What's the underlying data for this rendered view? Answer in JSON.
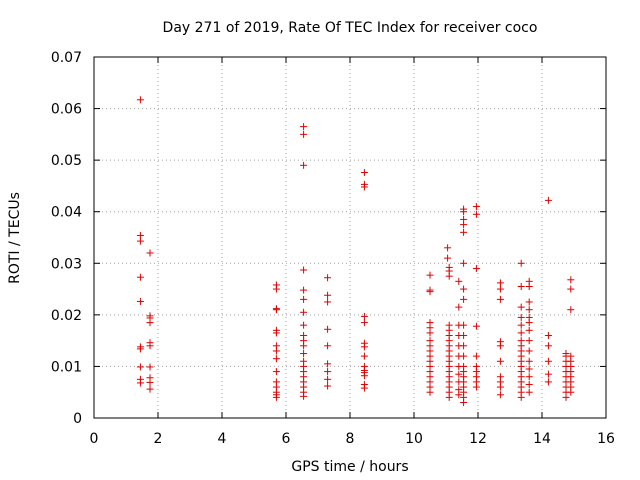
{
  "chart_data": {
    "type": "scatter",
    "title": "Day 271 of 2019, Rate Of TEC Index for receiver coco",
    "xlabel": "GPS time / hours",
    "ylabel": "ROTI / TECUs",
    "xlim": [
      0,
      16
    ],
    "ylim": [
      0,
      0.07
    ],
    "x_ticks": [
      0,
      2,
      4,
      6,
      8,
      10,
      12,
      14,
      16
    ],
    "x_tick_labels": [
      "0",
      "2",
      "4",
      "6",
      "8",
      "10",
      "12",
      "14",
      "16"
    ],
    "y_ticks": [
      0,
      0.01,
      0.02,
      0.03,
      0.04,
      0.05,
      0.06,
      0.07
    ],
    "y_tick_labels": [
      "0",
      "0.01",
      "0.02",
      "0.03",
      "0.04",
      "0.05",
      "0.06",
      "0.07"
    ],
    "grid": true,
    "marker": "+",
    "color": "#e00000",
    "series": [
      {
        "name": "ROTI",
        "points": [
          [
            1.45,
            0.0617
          ],
          [
            1.45,
            0.0354
          ],
          [
            1.45,
            0.0343
          ],
          [
            1.45,
            0.0273
          ],
          [
            1.45,
            0.0226
          ],
          [
            1.45,
            0.0138
          ],
          [
            1.45,
            0.0134
          ],
          [
            1.45,
            0.0099
          ],
          [
            1.45,
            0.0075
          ],
          [
            1.45,
            0.0068
          ],
          [
            1.75,
            0.032
          ],
          [
            1.75,
            0.0198
          ],
          [
            1.75,
            0.0194
          ],
          [
            1.75,
            0.0185
          ],
          [
            1.75,
            0.0146
          ],
          [
            1.75,
            0.014
          ],
          [
            1.75,
            0.0099
          ],
          [
            1.75,
            0.0078
          ],
          [
            1.75,
            0.0069
          ],
          [
            1.75,
            0.0056
          ],
          [
            5.7,
            0.0258
          ],
          [
            5.7,
            0.025
          ],
          [
            5.7,
            0.0212
          ],
          [
            5.7,
            0.021
          ],
          [
            5.7,
            0.017
          ],
          [
            5.7,
            0.0165
          ],
          [
            5.7,
            0.014
          ],
          [
            5.7,
            0.013
          ],
          [
            5.7,
            0.0115
          ],
          [
            5.7,
            0.009
          ],
          [
            5.7,
            0.007
          ],
          [
            5.7,
            0.006
          ],
          [
            5.7,
            0.005
          ],
          [
            5.7,
            0.0045
          ],
          [
            5.7,
            0.004
          ],
          [
            6.55,
            0.0565
          ],
          [
            6.55,
            0.055
          ],
          [
            6.55,
            0.049
          ],
          [
            6.55,
            0.0287
          ],
          [
            6.55,
            0.0248
          ],
          [
            6.55,
            0.023
          ],
          [
            6.55,
            0.0205
          ],
          [
            6.55,
            0.018
          ],
          [
            6.55,
            0.016
          ],
          [
            6.55,
            0.015
          ],
          [
            6.55,
            0.014
          ],
          [
            6.55,
            0.0125
          ],
          [
            6.55,
            0.011
          ],
          [
            6.55,
            0.01
          ],
          [
            6.55,
            0.009
          ],
          [
            6.55,
            0.008
          ],
          [
            6.55,
            0.007
          ],
          [
            6.55,
            0.006
          ],
          [
            6.55,
            0.005
          ],
          [
            6.55,
            0.0042
          ],
          [
            7.3,
            0.0272
          ],
          [
            7.3,
            0.0238
          ],
          [
            7.3,
            0.0225
          ],
          [
            7.3,
            0.0172
          ],
          [
            7.3,
            0.014
          ],
          [
            7.3,
            0.0105
          ],
          [
            7.3,
            0.009
          ],
          [
            7.3,
            0.0075
          ],
          [
            7.3,
            0.0062
          ],
          [
            8.45,
            0.0476
          ],
          [
            8.45,
            0.0453
          ],
          [
            8.45,
            0.0448
          ],
          [
            8.45,
            0.0197
          ],
          [
            8.45,
            0.0185
          ],
          [
            8.45,
            0.0145
          ],
          [
            8.45,
            0.0138
          ],
          [
            8.45,
            0.012
          ],
          [
            8.45,
            0.01
          ],
          [
            8.45,
            0.0092
          ],
          [
            8.45,
            0.0088
          ],
          [
            8.45,
            0.0082
          ],
          [
            8.45,
            0.0065
          ],
          [
            8.45,
            0.0058
          ],
          [
            10.5,
            0.0277
          ],
          [
            10.5,
            0.0248
          ],
          [
            10.5,
            0.0245
          ],
          [
            10.5,
            0.0185
          ],
          [
            10.5,
            0.0175
          ],
          [
            10.5,
            0.0165
          ],
          [
            10.5,
            0.015
          ],
          [
            10.5,
            0.014
          ],
          [
            10.5,
            0.013
          ],
          [
            10.5,
            0.012
          ],
          [
            10.5,
            0.011
          ],
          [
            10.5,
            0.01
          ],
          [
            10.5,
            0.009
          ],
          [
            10.5,
            0.008
          ],
          [
            10.5,
            0.007
          ],
          [
            10.5,
            0.006
          ],
          [
            10.5,
            0.005
          ],
          [
            11.05,
            0.033
          ],
          [
            11.05,
            0.031
          ],
          [
            11.1,
            0.0292
          ],
          [
            11.1,
            0.0285
          ],
          [
            11.1,
            0.0275
          ],
          [
            11.1,
            0.018
          ],
          [
            11.1,
            0.017
          ],
          [
            11.1,
            0.016
          ],
          [
            11.1,
            0.015
          ],
          [
            11.1,
            0.014
          ],
          [
            11.1,
            0.013
          ],
          [
            11.1,
            0.012
          ],
          [
            11.1,
            0.011
          ],
          [
            11.1,
            0.01
          ],
          [
            11.1,
            0.009
          ],
          [
            11.1,
            0.008
          ],
          [
            11.1,
            0.007
          ],
          [
            11.1,
            0.006
          ],
          [
            11.1,
            0.005
          ],
          [
            11.1,
            0.004
          ],
          [
            11.4,
            0.0265
          ],
          [
            11.4,
            0.0215
          ],
          [
            11.4,
            0.018
          ],
          [
            11.4,
            0.016
          ],
          [
            11.4,
            0.014
          ],
          [
            11.4,
            0.012
          ],
          [
            11.4,
            0.01
          ],
          [
            11.4,
            0.0085
          ],
          [
            11.4,
            0.007
          ],
          [
            11.4,
            0.0055
          ],
          [
            11.4,
            0.0045
          ],
          [
            11.55,
            0.0405
          ],
          [
            11.55,
            0.04
          ],
          [
            11.55,
            0.0385
          ],
          [
            11.55,
            0.0375
          ],
          [
            11.55,
            0.036
          ],
          [
            11.55,
            0.03
          ],
          [
            11.55,
            0.025
          ],
          [
            11.55,
            0.023
          ],
          [
            11.55,
            0.018
          ],
          [
            11.55,
            0.016
          ],
          [
            11.55,
            0.014
          ],
          [
            11.55,
            0.012
          ],
          [
            11.55,
            0.01
          ],
          [
            11.55,
            0.009
          ],
          [
            11.55,
            0.008
          ],
          [
            11.55,
            0.007
          ],
          [
            11.55,
            0.006
          ],
          [
            11.55,
            0.005
          ],
          [
            11.55,
            0.004
          ],
          [
            11.55,
            0.003
          ],
          [
            11.95,
            0.041
          ],
          [
            11.95,
            0.0395
          ],
          [
            11.95,
            0.029
          ],
          [
            11.95,
            0.0178
          ],
          [
            11.95,
            0.012
          ],
          [
            11.95,
            0.01
          ],
          [
            11.95,
            0.009
          ],
          [
            11.95,
            0.008
          ],
          [
            11.95,
            0.007
          ],
          [
            11.95,
            0.006
          ],
          [
            12.7,
            0.0262
          ],
          [
            12.7,
            0.025
          ],
          [
            12.7,
            0.023
          ],
          [
            12.7,
            0.0148
          ],
          [
            12.7,
            0.014
          ],
          [
            12.7,
            0.011
          ],
          [
            12.7,
            0.008
          ],
          [
            12.7,
            0.007
          ],
          [
            12.7,
            0.006
          ],
          [
            12.7,
            0.0045
          ],
          [
            13.35,
            0.03
          ],
          [
            13.35,
            0.0255
          ],
          [
            13.35,
            0.0215
          ],
          [
            13.35,
            0.0195
          ],
          [
            13.35,
            0.018
          ],
          [
            13.35,
            0.0165
          ],
          [
            13.35,
            0.015
          ],
          [
            13.35,
            0.014
          ],
          [
            13.35,
            0.013
          ],
          [
            13.35,
            0.012
          ],
          [
            13.35,
            0.011
          ],
          [
            13.35,
            0.01
          ],
          [
            13.35,
            0.009
          ],
          [
            13.35,
            0.008
          ],
          [
            13.35,
            0.007
          ],
          [
            13.35,
            0.006
          ],
          [
            13.35,
            0.005
          ],
          [
            13.35,
            0.004
          ],
          [
            13.6,
            0.0265
          ],
          [
            13.6,
            0.0255
          ],
          [
            13.6,
            0.0225
          ],
          [
            13.6,
            0.021
          ],
          [
            13.6,
            0.0195
          ],
          [
            13.6,
            0.0185
          ],
          [
            13.6,
            0.017
          ],
          [
            13.6,
            0.015
          ],
          [
            13.6,
            0.013
          ],
          [
            13.6,
            0.011
          ],
          [
            13.6,
            0.0095
          ],
          [
            13.6,
            0.008
          ],
          [
            13.6,
            0.0065
          ],
          [
            13.6,
            0.005
          ],
          [
            14.2,
            0.0422
          ],
          [
            14.2,
            0.016
          ],
          [
            14.2,
            0.014
          ],
          [
            14.2,
            0.011
          ],
          [
            14.2,
            0.0085
          ],
          [
            14.2,
            0.007
          ],
          [
            14.75,
            0.0125
          ],
          [
            14.75,
            0.012
          ],
          [
            14.75,
            0.011
          ],
          [
            14.75,
            0.01
          ],
          [
            14.75,
            0.009
          ],
          [
            14.75,
            0.008
          ],
          [
            14.75,
            0.007
          ],
          [
            14.75,
            0.006
          ],
          [
            14.75,
            0.005
          ],
          [
            14.75,
            0.004
          ],
          [
            14.9,
            0.0268
          ],
          [
            14.9,
            0.025
          ],
          [
            14.9,
            0.021
          ],
          [
            14.9,
            0.012
          ],
          [
            14.9,
            0.011
          ],
          [
            14.9,
            0.01
          ],
          [
            14.9,
            0.009
          ],
          [
            14.9,
            0.008
          ],
          [
            14.9,
            0.007
          ],
          [
            14.9,
            0.006
          ],
          [
            14.9,
            0.005
          ]
        ]
      }
    ]
  }
}
